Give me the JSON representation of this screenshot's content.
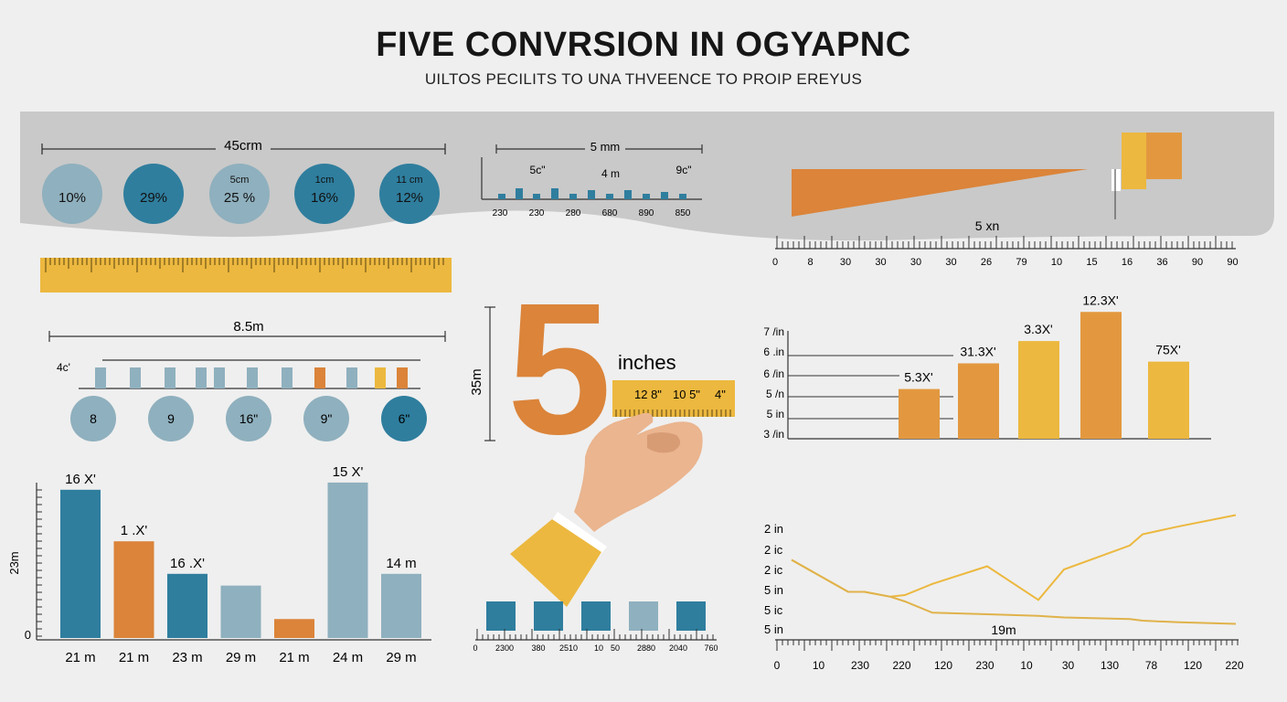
{
  "header": {
    "title": "FIVE CONVRSION IN OGYAPNC",
    "subtitle": "UILTOS PECILITS TO UNA THVEENCE TO PROIP EREYUS"
  },
  "colors": {
    "background": "#efefef",
    "band": "#c9c9c9",
    "teal": "#2f7e9e",
    "light_blue": "#8fb0be",
    "orange": "#db843a",
    "yellow": "#ecb83f",
    "skin": "#eab58f"
  },
  "circles_panel": {
    "measure_label": "45crm",
    "circles": [
      {
        "top": "",
        "value": "10%",
        "color": "light_blue"
      },
      {
        "top": "",
        "value": "29%",
        "color": "teal"
      },
      {
        "top": "5cm",
        "value": "25 %",
        "color": "light_blue"
      },
      {
        "top": "1cm",
        "value": "16%",
        "color": "teal"
      },
      {
        "top": "11 cm",
        "value": "12%",
        "color": "teal"
      }
    ]
  },
  "small_axis_panel": {
    "measure_label": "5 mm",
    "callouts": [
      "5c\"",
      "4 m",
      "9c\""
    ],
    "ticks": [
      "230",
      "230",
      "280",
      "680",
      "890",
      "850"
    ]
  },
  "orange_wedge_panel": {
    "measure_label": "5 xn",
    "ruler_ticks": [
      "0",
      "8",
      "30",
      "30",
      "30",
      "30",
      "26",
      "79",
      "10",
      "15",
      "16",
      "36",
      "90",
      "90"
    ]
  },
  "second_row_panel": {
    "measure_label": "8.5m",
    "axis_label": "4c'",
    "circles": [
      {
        "value": "8",
        "color": "light_blue"
      },
      {
        "value": "9",
        "color": "light_blue"
      },
      {
        "value": "16\"",
        "color": "light_blue"
      },
      {
        "value": "9\"",
        "color": "light_blue"
      },
      {
        "value": "6\"",
        "color": "teal"
      }
    ]
  },
  "hero": {
    "big_number": "5",
    "unit_word": "inches",
    "side_label": "35m",
    "ruler_text": [
      "12 8\"",
      "10 5\"",
      "4\""
    ],
    "bar_ticks": [
      "0",
      "2300",
      "380",
      "2510",
      "10",
      "50",
      "2880",
      "2040",
      "760"
    ]
  },
  "bottom_left_chart": {
    "y_label": "23m",
    "zero_label": "0",
    "bars": [
      {
        "category": "21 m",
        "label": "16 X'",
        "color": "teal"
      },
      {
        "category": "21 m",
        "label": "1 .X'",
        "color": "orange"
      },
      {
        "category": "23 m",
        "label": "16 .X'",
        "color": "teal"
      },
      {
        "category": "29 m",
        "label": "",
        "color": "light_blue"
      },
      {
        "category": "21 m",
        "label": "",
        "color": "orange"
      },
      {
        "category": "24 m",
        "label": "15 X'",
        "color": "light_blue"
      },
      {
        "category": "29 m",
        "label": "14 m",
        "color": "light_blue"
      }
    ]
  },
  "chart_data": [
    {
      "type": "bar",
      "categories": [
        "21 m",
        "21 m",
        "23 m",
        "29 m",
        "21 m",
        "24 m",
        "29 m"
      ],
      "values": [
        164,
        107,
        71,
        58,
        21,
        172,
        71
      ],
      "ylabel": "23m",
      "ylim": [
        0,
        180
      ],
      "grid": false
    },
    {
      "type": "bar",
      "y_tick_labels": [
        "7 /in",
        "6 .in",
        "6 /in",
        "5 /n",
        "5 in",
        "3 /in"
      ],
      "bar_labels": [
        "5.3X'",
        "31.3X'",
        "3.3X'",
        "12.3X'",
        "75X'"
      ],
      "values": [
        2.9,
        4.4,
        5.7,
        7.4,
        4.5
      ],
      "ylim": [
        0,
        8
      ],
      "grid": false
    },
    {
      "type": "line",
      "y_tick_labels": [
        "2 in",
        "2 ic",
        "2 ic",
        "5 in",
        "5 ic",
        "5 in"
      ],
      "x_tick_labels": [
        "0",
        "10",
        "230",
        "220",
        "120",
        "230",
        "10",
        "30",
        "130",
        "78",
        "120",
        "220"
      ],
      "annotation": "19m",
      "series": [
        {
          "values": [
            50,
            30,
            30,
            27,
            28,
            35,
            46,
            25,
            44,
            59,
            66,
            71,
            78
          ]
        },
        {
          "values": [
            50,
            30,
            30,
            27,
            24,
            17,
            16,
            15,
            14,
            13,
            12,
            11,
            10
          ]
        }
      ],
      "ylim": [
        0,
        80
      ],
      "grid": false
    }
  ]
}
